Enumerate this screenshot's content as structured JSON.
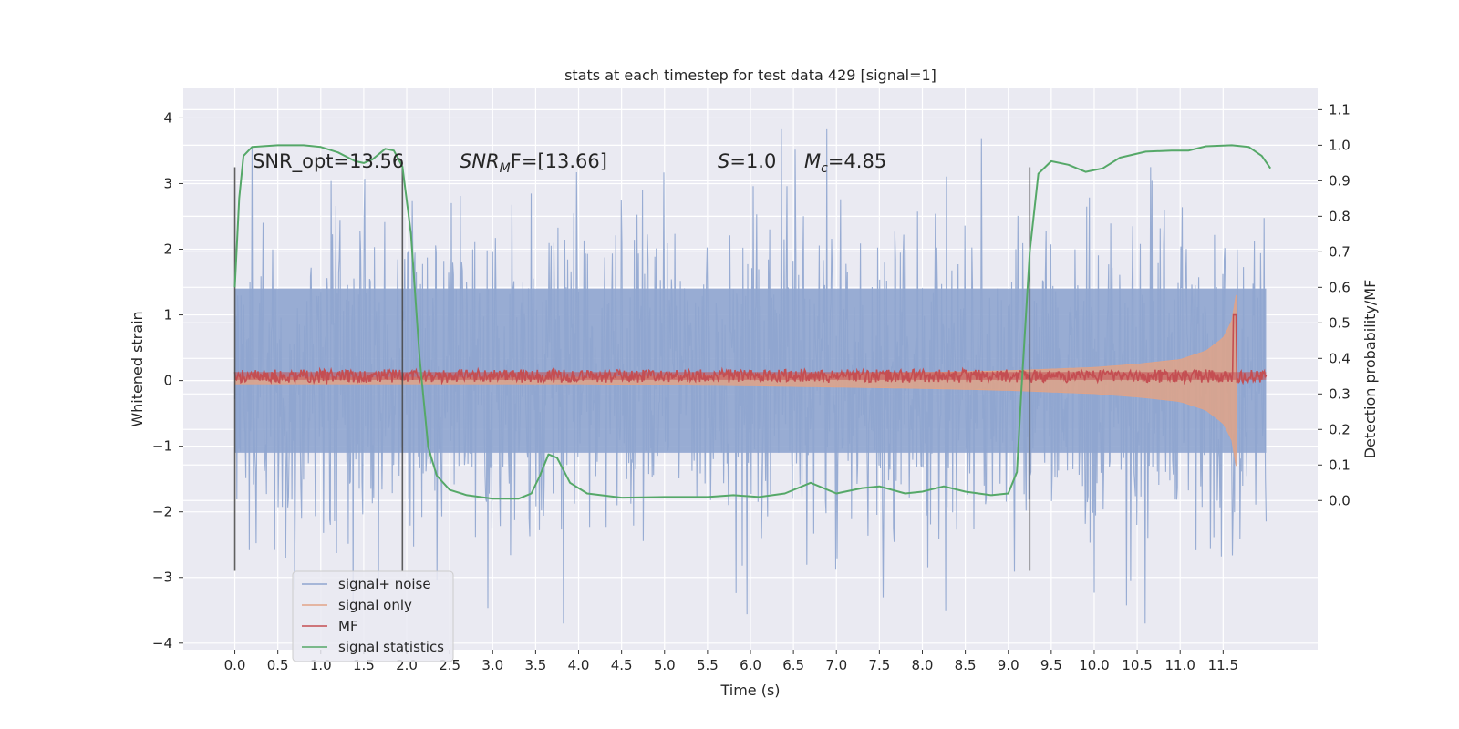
{
  "chart_data": {
    "type": "line",
    "title": "stats at each timestep for test data 429 [signal=1]",
    "xlabel": "Time (s)",
    "ylabel": "Whitened strain",
    "ylabel_right": "Detection probability/MF",
    "xlim": [
      -0.6,
      12.6
    ],
    "ylim": [
      -4.1,
      4.45
    ],
    "ylim_right": [
      -0.42,
      1.16
    ],
    "x_ticks": [
      0.0,
      0.5,
      1.0,
      1.5,
      2.0,
      2.5,
      3.0,
      3.5,
      4.0,
      4.5,
      5.0,
      5.5,
      6.0,
      6.5,
      7.0,
      7.5,
      8.0,
      8.5,
      9.0,
      9.5,
      10.0,
      10.5,
      11.0,
      11.5
    ],
    "x_tick_labels": [
      "0.0",
      "0.5",
      "1.0",
      "1.5",
      "2.0",
      "2.5",
      "3.0",
      "3.5",
      "4.0",
      "4.5",
      "5.0",
      "5.5",
      "6.0",
      "6.5",
      "7.0",
      "7.5",
      "8.0",
      "8.5",
      "9.0",
      "9.5",
      "10.0",
      "10.5",
      "11.0",
      "11.5"
    ],
    "y_ticks": [
      4,
      3,
      2,
      1,
      0,
      -1,
      -2,
      -3,
      -4
    ],
    "y_tick_labels": [
      "4",
      "3",
      "2",
      "1",
      "0",
      "−1",
      "−2",
      "−3",
      "−4"
    ],
    "y_ticks_right": [
      1.1,
      1.0,
      0.9,
      0.8,
      0.7,
      0.6,
      0.5,
      0.4,
      0.3,
      0.2,
      0.1,
      0.0
    ],
    "y_tick_labels_right": [
      "1.1",
      "1.0",
      "0.9",
      "0.8",
      "0.7",
      "0.6",
      "0.5",
      "0.4",
      "0.3",
      "0.2",
      "0.1",
      "0.0"
    ],
    "grid": true,
    "legend_position": "lower-left",
    "annotations": {
      "snr_opt": "SNR_opt=13.56",
      "snr_mf_sym": "SNR",
      "snr_mf_sub": "M",
      "snr_mf_tail": "F=[13.66]",
      "s_sym": "S",
      "s_val": "=1.0",
      "mc_sym": "M",
      "mc_sub": "c",
      "mc_val": "=4.85"
    },
    "vertical_markers": [
      0.0,
      1.95,
      9.25
    ],
    "series": [
      {
        "name": "signal+ noise",
        "color": "#8fa5cf",
        "axis": "left",
        "x_range": [
          0.0,
          12.0
        ],
        "envelope_max": 4.1,
        "envelope_min": -3.7,
        "dense_band": [
          -1.1,
          1.4
        ]
      },
      {
        "name": "signal only",
        "color": "#e1a387",
        "axis": "left",
        "x_range": [
          0.0,
          11.65
        ],
        "envelope_x": [
          0.0,
          4.0,
          6.0,
          8.0,
          9.0,
          10.0,
          10.5,
          11.0,
          11.3,
          11.5,
          11.6,
          11.65
        ],
        "envelope_amp": [
          0.05,
          0.05,
          0.08,
          0.12,
          0.15,
          0.2,
          0.25,
          0.32,
          0.45,
          0.65,
          0.9,
          1.3
        ]
      },
      {
        "name": "MF",
        "color": "#c44e52",
        "axis": "left",
        "x_range": [
          0.0,
          12.0
        ],
        "baseline": 0.07,
        "amplitude": 0.1,
        "peak": {
          "x": 11.63,
          "y": 1.0
        }
      },
      {
        "name": "signal statistics",
        "color": "#55a868",
        "axis": "right",
        "points": [
          [
            0.0,
            0.6
          ],
          [
            0.05,
            0.85
          ],
          [
            0.1,
            0.97
          ],
          [
            0.2,
            0.995
          ],
          [
            0.5,
            1.0
          ],
          [
            0.8,
            1.0
          ],
          [
            1.0,
            0.995
          ],
          [
            1.2,
            0.98
          ],
          [
            1.4,
            0.955
          ],
          [
            1.5,
            0.95
          ],
          [
            1.6,
            0.96
          ],
          [
            1.75,
            0.99
          ],
          [
            1.85,
            0.985
          ],
          [
            1.95,
            0.94
          ],
          [
            2.05,
            0.75
          ],
          [
            2.15,
            0.4
          ],
          [
            2.25,
            0.15
          ],
          [
            2.35,
            0.07
          ],
          [
            2.5,
            0.03
          ],
          [
            2.7,
            0.015
          ],
          [
            3.0,
            0.005
          ],
          [
            3.3,
            0.005
          ],
          [
            3.45,
            0.02
          ],
          [
            3.55,
            0.07
          ],
          [
            3.65,
            0.13
          ],
          [
            3.75,
            0.12
          ],
          [
            3.9,
            0.05
          ],
          [
            4.1,
            0.02
          ],
          [
            4.5,
            0.008
          ],
          [
            5.0,
            0.01
          ],
          [
            5.5,
            0.01
          ],
          [
            5.8,
            0.015
          ],
          [
            6.1,
            0.01
          ],
          [
            6.4,
            0.02
          ],
          [
            6.7,
            0.05
          ],
          [
            7.0,
            0.02
          ],
          [
            7.3,
            0.035
          ],
          [
            7.5,
            0.04
          ],
          [
            7.8,
            0.02
          ],
          [
            8.0,
            0.025
          ],
          [
            8.25,
            0.04
          ],
          [
            8.5,
            0.025
          ],
          [
            8.8,
            0.015
          ],
          [
            9.0,
            0.02
          ],
          [
            9.1,
            0.08
          ],
          [
            9.15,
            0.3
          ],
          [
            9.25,
            0.7
          ],
          [
            9.35,
            0.92
          ],
          [
            9.5,
            0.955
          ],
          [
            9.7,
            0.945
          ],
          [
            9.9,
            0.925
          ],
          [
            10.1,
            0.935
          ],
          [
            10.3,
            0.965
          ],
          [
            10.6,
            0.982
          ],
          [
            10.9,
            0.985
          ],
          [
            11.1,
            0.985
          ],
          [
            11.3,
            0.997
          ],
          [
            11.6,
            1.0
          ],
          [
            11.8,
            0.995
          ],
          [
            11.95,
            0.97
          ],
          [
            12.05,
            0.935
          ]
        ]
      }
    ]
  }
}
